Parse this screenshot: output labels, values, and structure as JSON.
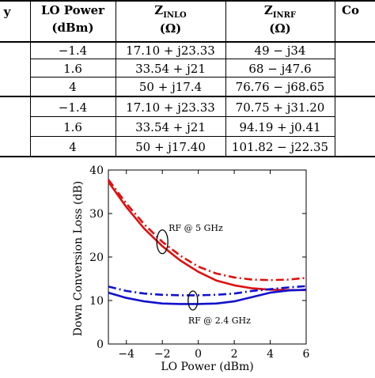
{
  "table": {
    "headers": {
      "col0": "y",
      "col1_line1": "LO Power",
      "col1_line2": "(dBm)",
      "col2_main": "Z",
      "col2_sub": "INLO",
      "col2_line2": "(Ω)",
      "col3_main": "Z",
      "col3_sub": "INRF",
      "col3_line2": "(Ω)",
      "col4": "Co"
    },
    "rows": [
      {
        "lo_power": "−1.4",
        "z_inlo": "17.10 + j23.33",
        "z_inrf": "49 − j34"
      },
      {
        "lo_power": "1.6",
        "z_inlo": "33.54 + j21",
        "z_inrf": "68 − j47.6"
      },
      {
        "lo_power": "4",
        "z_inlo": "50 + j17.4",
        "z_inrf": "76.76 − j68.65"
      },
      {
        "lo_power": "−1.4",
        "z_inlo": "17.10 + j23.33",
        "z_inrf": "70.75 + j31.20"
      },
      {
        "lo_power": "1.6",
        "z_inlo": "33.54 + j21",
        "z_inrf": "94.19 + j0.41"
      },
      {
        "lo_power": "4",
        "z_inlo": "50 + j17.40",
        "z_inrf": "101.82 − j22.35"
      }
    ]
  },
  "chart_data": {
    "type": "line",
    "title": "",
    "xlabel": "LO Power (dBm)",
    "ylabel": "Down Conversion Loss (dB)",
    "xlim": [
      -5,
      6
    ],
    "ylim": [
      0,
      40
    ],
    "xticks": [
      "−4",
      "−2",
      "0",
      "2",
      "4",
      "6"
    ],
    "xtick_values": [
      -4,
      -2,
      0,
      2,
      4,
      6
    ],
    "yticks": [
      "0",
      "10",
      "20",
      "30",
      "40"
    ],
    "ytick_values": [
      0,
      10,
      20,
      30,
      40
    ],
    "annotations": [
      {
        "text": "RF @ 5 GHz",
        "x": -2.0,
        "y": 23.5
      },
      {
        "text": "RF @ 2.4 GHz",
        "x": -0.3,
        "y": 10.0
      }
    ],
    "series": [
      {
        "color": "#dd1111",
        "style": "solid",
        "x": [
          -5,
          -4,
          -3,
          -2,
          -1,
          0,
          1,
          2,
          3,
          4,
          5,
          6
        ],
        "y": [
          37.3,
          31.5,
          26.5,
          22.5,
          19.2,
          16.6,
          14.6,
          13.5,
          12.8,
          12.5,
          12.4,
          12.4
        ]
      },
      {
        "color": "#dd1111",
        "style": "dashdot",
        "x": [
          -5,
          -4,
          -3,
          -2,
          -1,
          0,
          1,
          2,
          3,
          4,
          5,
          6
        ],
        "y": [
          37.8,
          32.3,
          27.5,
          23.5,
          20.3,
          17.8,
          16.2,
          15.3,
          14.8,
          14.7,
          14.8,
          15.2
        ]
      },
      {
        "color": "#1111cc",
        "style": "solid",
        "x": [
          -5,
          -4,
          -3,
          -2,
          -1,
          0,
          1,
          2,
          3,
          4,
          5,
          6
        ],
        "y": [
          11.8,
          10.6,
          9.8,
          9.3,
          9.2,
          9.2,
          9.3,
          9.8,
          10.8,
          11.8,
          12.3,
          12.5
        ]
      },
      {
        "color": "#1111cc",
        "style": "dashdot",
        "x": [
          -5,
          -4,
          -3,
          -2,
          -1,
          0,
          1,
          2,
          3,
          4,
          5,
          6
        ],
        "y": [
          13.2,
          12.2,
          11.6,
          11.3,
          11.2,
          11.2,
          11.3,
          11.6,
          12.2,
          12.6,
          13.0,
          13.3
        ]
      }
    ]
  }
}
